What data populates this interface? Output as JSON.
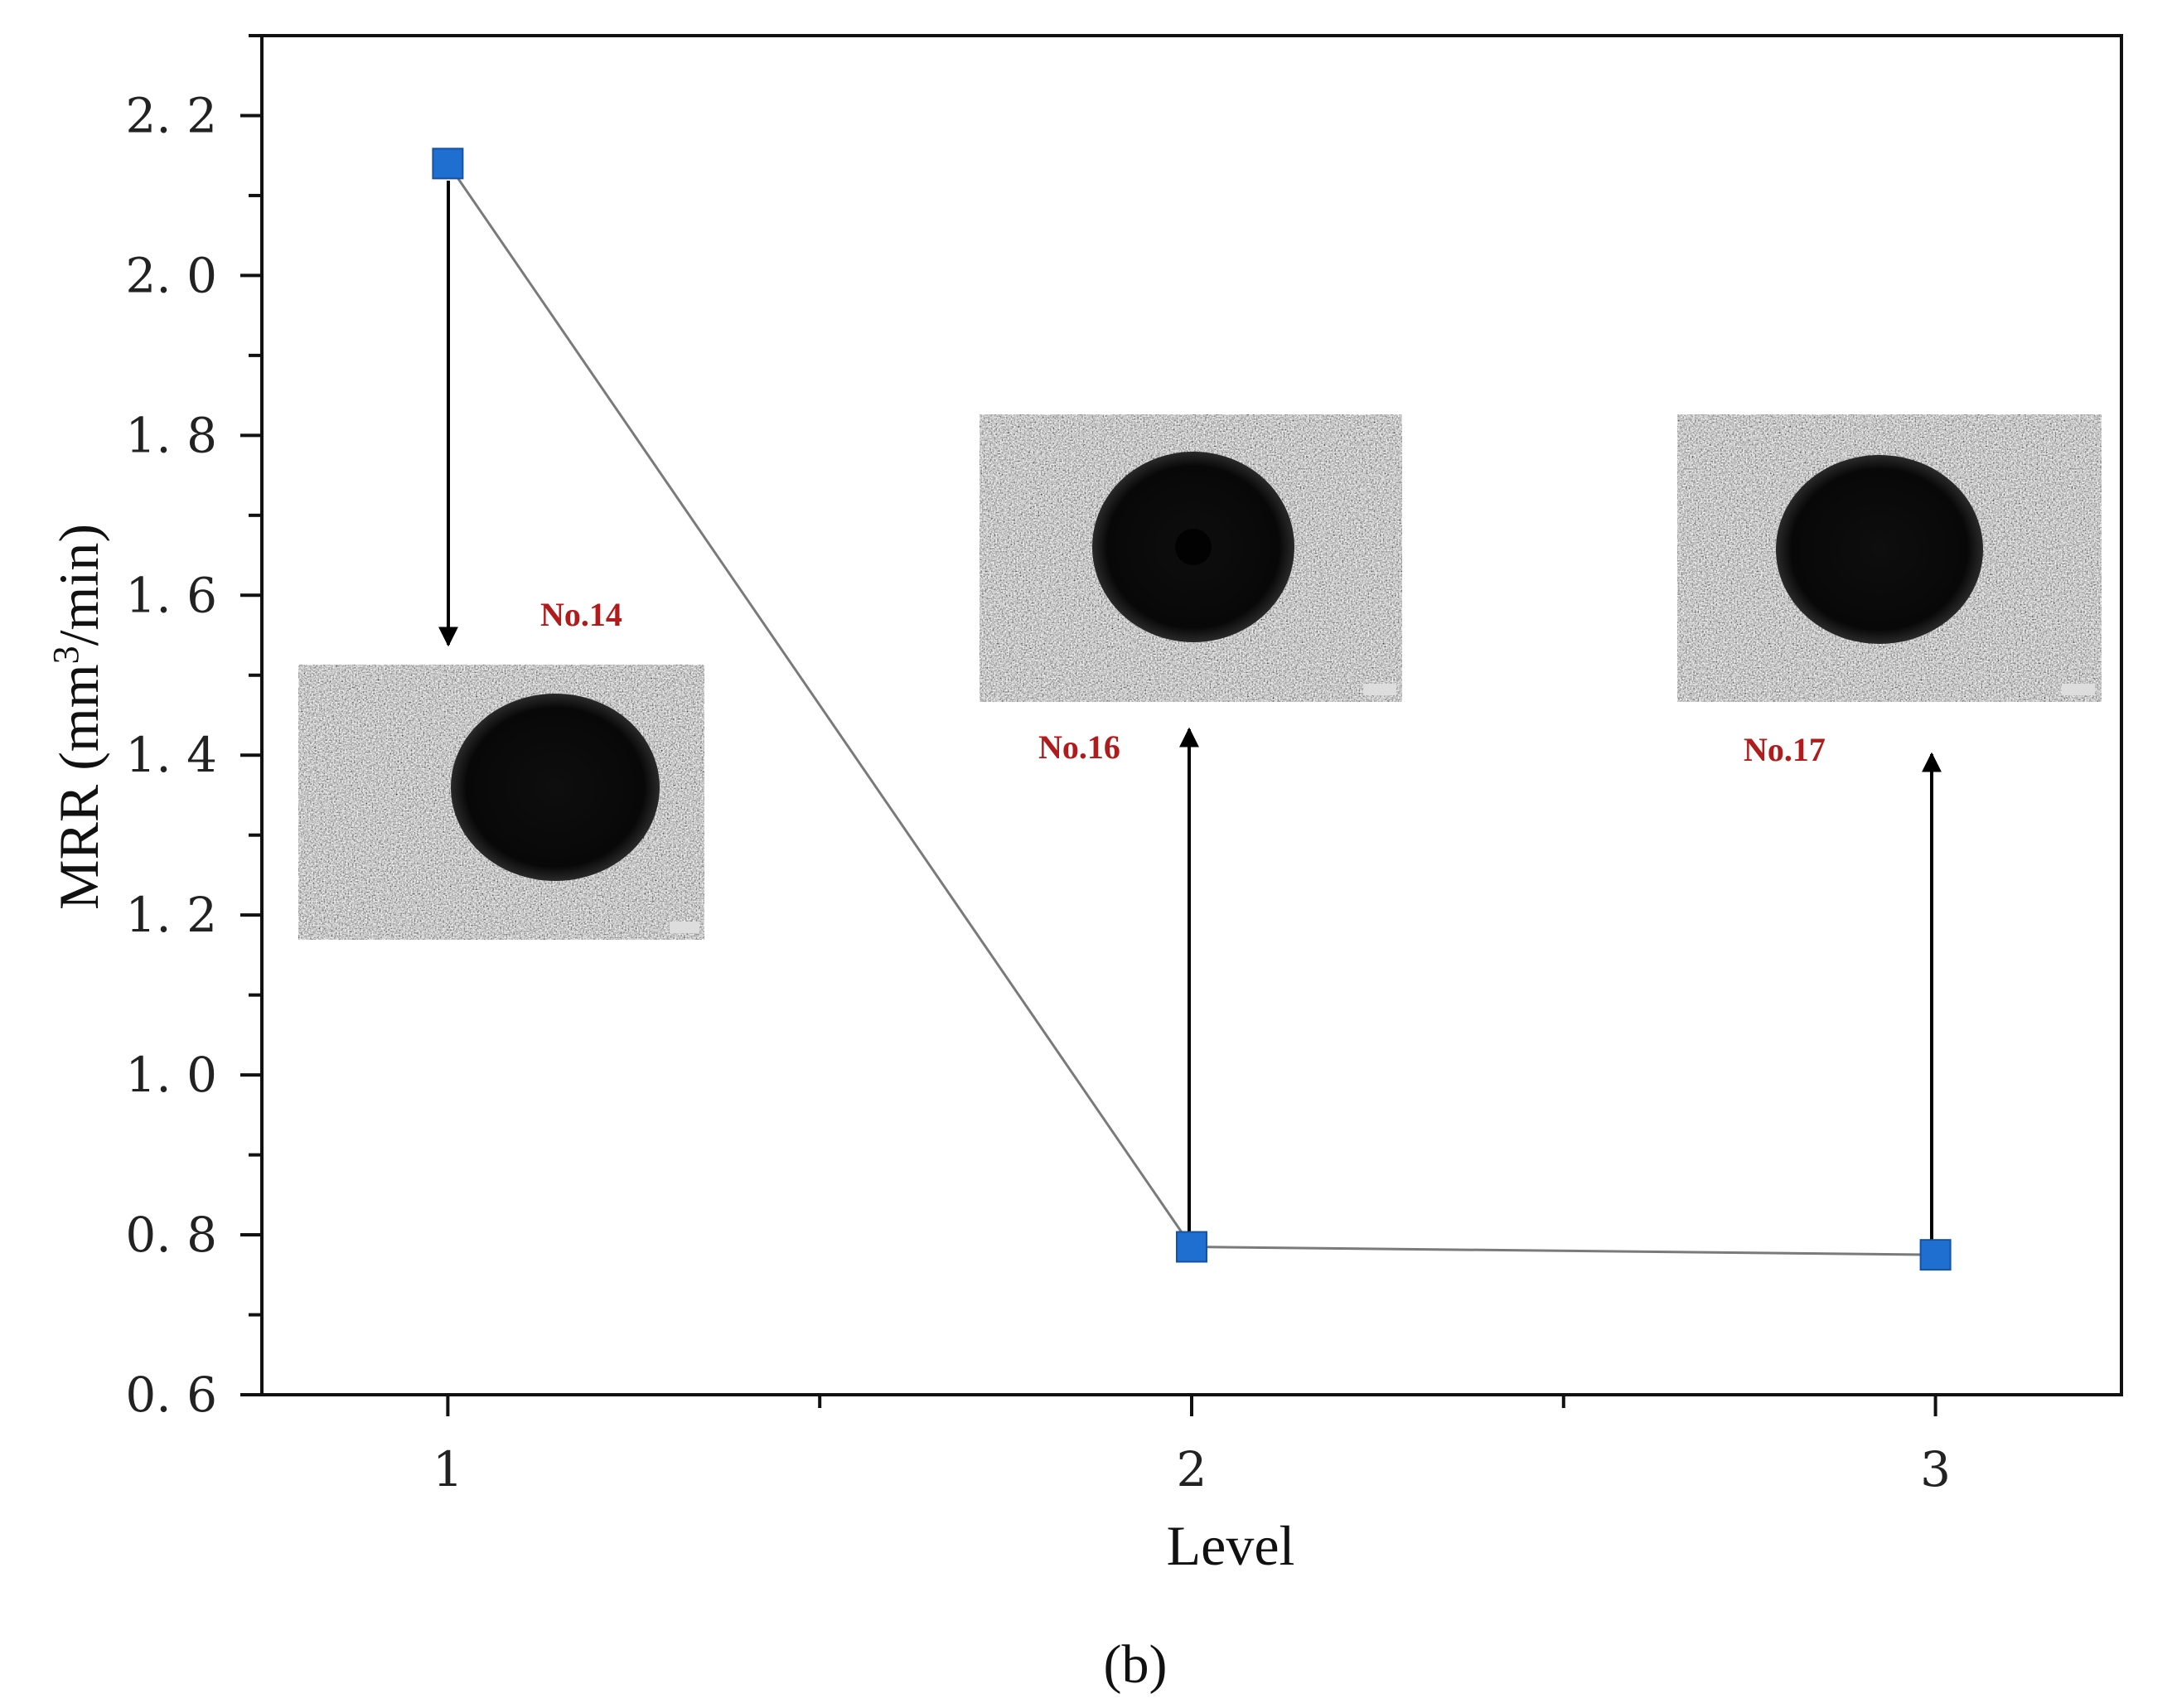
{
  "chart_data": {
    "type": "line",
    "x": [
      1,
      2,
      3
    ],
    "series": [
      {
        "values": [
          2.14,
          0.785,
          0.775
        ]
      }
    ],
    "xlabel": "Level",
    "ylabel_main": "MRR (mm",
    "ylabel_sup": "3",
    "ylabel_tail": "/min)",
    "xlim": [
      0.75,
      3.25
    ],
    "ylim": [
      0.6,
      2.3
    ],
    "xticks": [
      "1",
      "2",
      "3"
    ],
    "yticks": [
      "0. 6",
      "0. 8",
      "1. 0",
      "1. 2",
      "1. 4",
      "1. 6",
      "1. 8",
      "2. 0",
      "2. 2"
    ],
    "grid": false,
    "marker": "square",
    "marker_color": "#1f6fd1",
    "line_color": "#7a7a7a",
    "annotations": [
      {
        "label": "No.14",
        "level": 1
      },
      {
        "label": "No.16",
        "level": 2
      },
      {
        "label": "No.17",
        "level": 3
      }
    ],
    "label_color": "#b01c1c"
  },
  "caption": "(b)"
}
